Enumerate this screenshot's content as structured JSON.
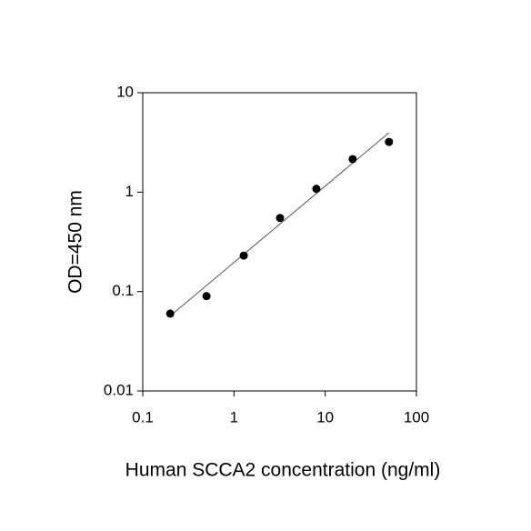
{
  "chart_data": {
    "type": "scatter",
    "xlabel": "Human SCCA2 concentration (ng/ml)",
    "ylabel": "OD=450 nm",
    "xscale": "log",
    "yscale": "log",
    "x": [
      0.2,
      0.5,
      1.28,
      3.2,
      8,
      20,
      50
    ],
    "values": [
      0.06,
      0.09,
      0.23,
      0.55,
      1.08,
      2.15,
      3.2
    ],
    "color": "#000000",
    "fit_line": {
      "x": [
        0.2,
        50
      ],
      "values": [
        0.057,
        3.96
      ],
      "color": "#555555"
    },
    "xlim": [
      0.1,
      100
    ],
    "ylim": [
      0.01,
      10
    ],
    "xticks": [
      0.1,
      1,
      10,
      100
    ],
    "yticks": [
      0.01,
      0.1,
      1,
      10
    ]
  }
}
